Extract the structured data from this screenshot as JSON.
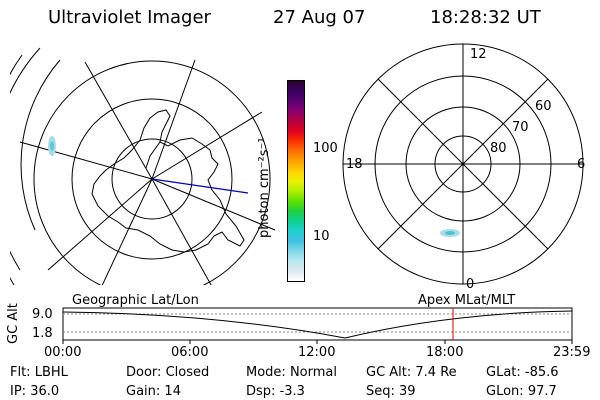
{
  "header": {
    "title": "Ultraviolet Imager",
    "date": "27 Aug 07",
    "time": "18:28:32 UT"
  },
  "colorbar": {
    "unit_label": "photon cm⁻²s⁻¹",
    "ticks": [
      "100",
      "10"
    ],
    "colors": [
      "#2a0030",
      "#3c0060",
      "#5a006e",
      "#8a0070",
      "#b40040",
      "#e00020",
      "#ff3000",
      "#ff7000",
      "#ffa000",
      "#ffd000",
      "#f0f000",
      "#b0f000",
      "#60e000",
      "#20d040",
      "#10d090",
      "#20d0d0",
      "#40c0e0",
      "#80d8e8",
      "#b8e8ee",
      "#dde8ee",
      "#ffffff"
    ]
  },
  "left_map": {
    "label": "Geographic Lat/Lon"
  },
  "right_map": {
    "label": "Apex MLat/MLT",
    "mlt_labels": [
      "12",
      "18",
      "6",
      "0"
    ],
    "lat_labels": [
      "60",
      "70",
      "80"
    ]
  },
  "timeline": {
    "y_label": "GC Alt",
    "y_ticks": [
      "9.0",
      "1.8"
    ],
    "x_ticks": [
      "00:00",
      "06:00",
      "12:00",
      "18:00",
      "23:59"
    ],
    "marker_color": "#e00000"
  },
  "status": {
    "row1": [
      {
        "label": "Flt:",
        "value": "LBHL"
      },
      {
        "label": "Door:",
        "value": "Closed"
      },
      {
        "label": "Mode:",
        "value": "Normal"
      },
      {
        "label": "GC Alt:",
        "value": "7.4 Re"
      },
      {
        "label": "GLat:",
        "value": "-85.6"
      }
    ],
    "row2": [
      {
        "label": "IP:",
        "value": "36.0"
      },
      {
        "label": "Gain:",
        "value": "14"
      },
      {
        "label": "Dsp:",
        "value": "-3.3"
      },
      {
        "label": "Seq:",
        "value": "39"
      },
      {
        "label": "GLon:",
        "value": "97.7"
      }
    ]
  }
}
